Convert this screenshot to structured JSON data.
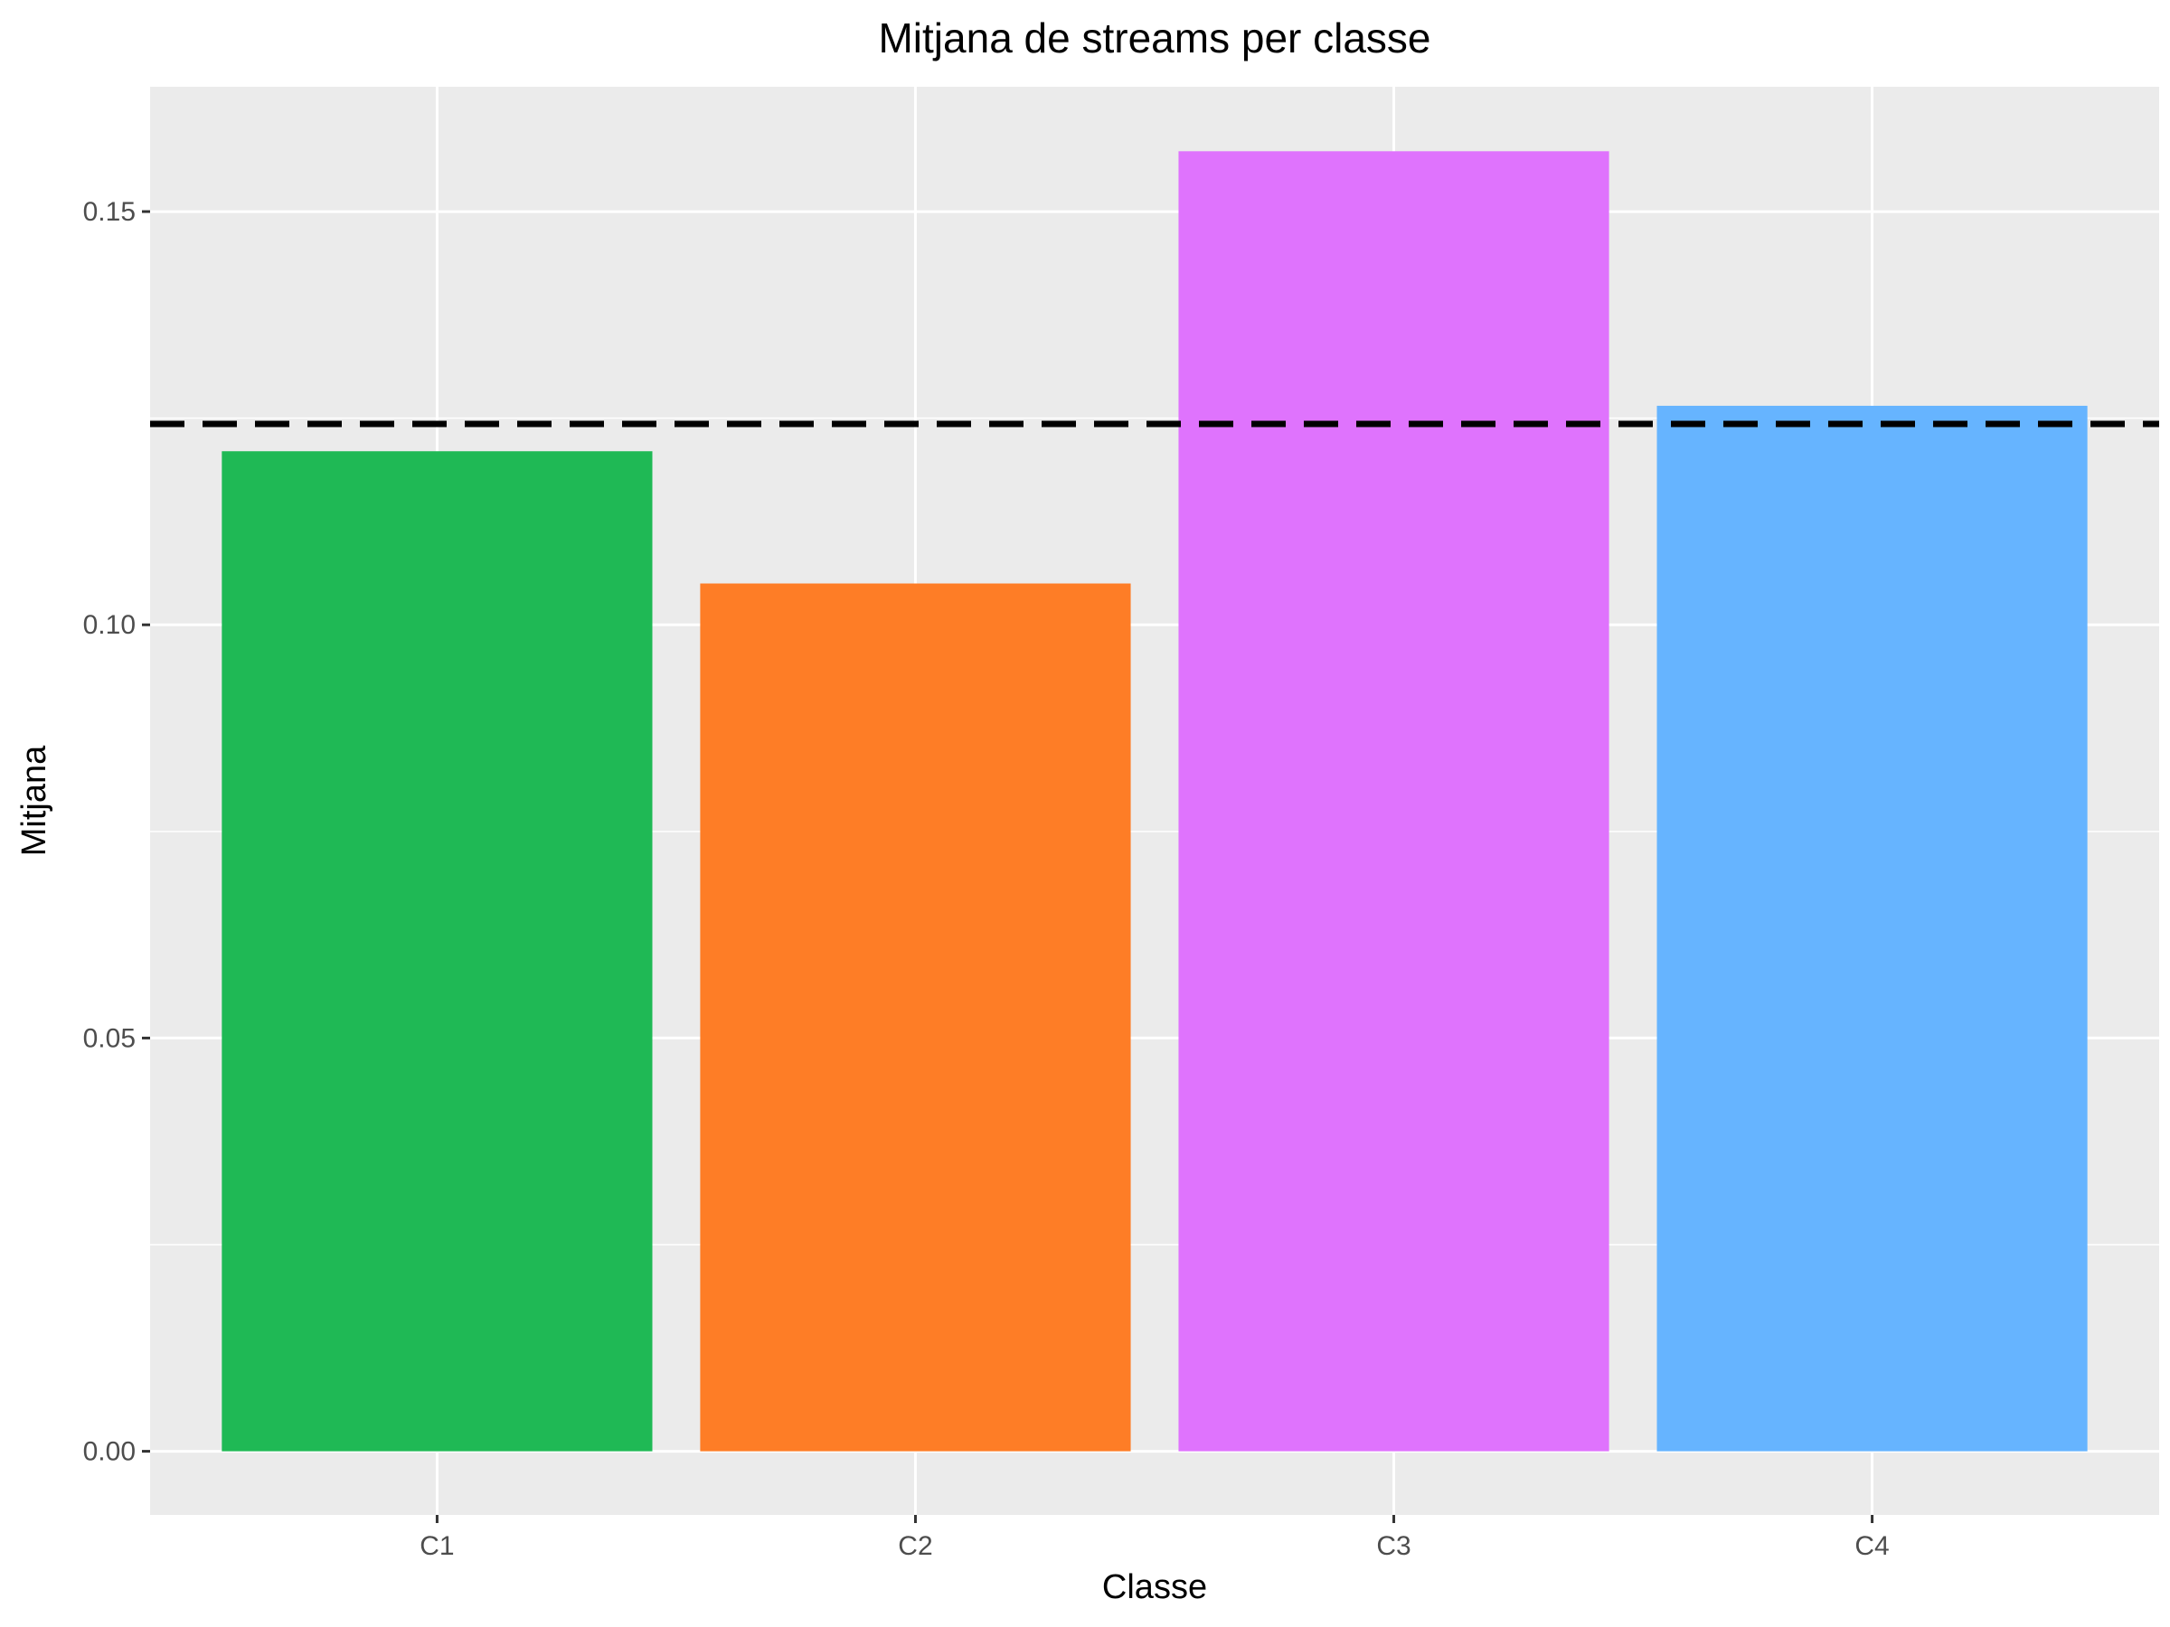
{
  "chart_data": {
    "type": "bar",
    "title": "Mitjana de streams per classe",
    "xlabel": "Classe",
    "ylabel": "Mitjana",
    "categories": [
      "C1",
      "C2",
      "C3",
      "C4"
    ],
    "values": [
      0.121,
      0.105,
      0.1573,
      0.1265
    ],
    "colors": [
      "#1FB955",
      "#FE7D26",
      "#DF73FD",
      "#66B4FF"
    ],
    "reference_line": {
      "value": 0.1243,
      "style": "dashed",
      "color": "#000000"
    },
    "yticks": [
      "0.00",
      "0.05",
      "0.10",
      "0.15"
    ],
    "ytick_values": [
      0,
      0.05,
      0.1,
      0.15
    ],
    "ylim": [
      -0.0077,
      0.1651
    ],
    "grid": true,
    "panel_background": "#EBEBEB",
    "grid_color": "#FFFFFF"
  }
}
